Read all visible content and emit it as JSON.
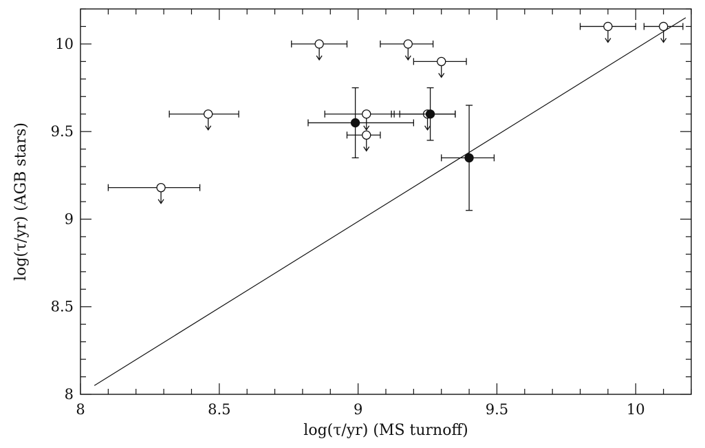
{
  "chart_data": {
    "type": "scatter",
    "xlabel": "log(τ/yr) (MS turnoff)",
    "ylabel": "log(τ/yr) (AGB stars)",
    "xlim": [
      8.0,
      10.2
    ],
    "ylim": [
      8.0,
      10.2
    ],
    "xticks": [
      "8",
      "8.5",
      "9",
      "9.5",
      "10"
    ],
    "yticks": [
      "8",
      "8.5",
      "9",
      "9.5",
      "10"
    ],
    "xtick_values": [
      8.0,
      8.5,
      9.0,
      9.5,
      10.0
    ],
    "ytick_values": [
      8.0,
      8.5,
      9.0,
      9.5,
      10.0
    ],
    "grid": false,
    "identity_line": [
      [
        8.05,
        8.05
      ],
      [
        10.18,
        10.15
      ]
    ],
    "series": [
      {
        "marker": "open-circle",
        "upper_limit": true,
        "points": [
          {
            "x": 8.29,
            "y": 9.18,
            "xerr": [
              8.1,
              8.43
            ]
          },
          {
            "x": 8.46,
            "y": 9.6,
            "xerr": [
              8.32,
              8.57
            ]
          },
          {
            "x": 8.86,
            "y": 10.0,
            "xerr": [
              8.76,
              8.96
            ]
          },
          {
            "x": 9.03,
            "y": 9.6,
            "xerr": [
              8.88,
              9.13
            ]
          },
          {
            "x": 9.03,
            "y": 9.48,
            "xerr": [
              8.96,
              9.08
            ]
          },
          {
            "x": 9.18,
            "y": 10.0,
            "xerr": [
              9.08,
              9.27
            ]
          },
          {
            "x": 9.3,
            "y": 9.9,
            "xerr": [
              9.2,
              9.39
            ]
          },
          {
            "x": 9.25,
            "y": 9.6,
            "xerr": [
              9.12,
              9.35
            ]
          },
          {
            "x": 9.9,
            "y": 10.1,
            "xerr": [
              9.8,
              10.0
            ]
          },
          {
            "x": 10.1,
            "y": 10.1,
            "xerr": [
              10.03,
              10.17
            ]
          }
        ]
      },
      {
        "marker": "filled-circle",
        "upper_limit": false,
        "points": [
          {
            "x": 8.99,
            "y": 9.55,
            "xerr": [
              8.82,
              9.2
            ],
            "yerr": [
              9.35,
              9.75
            ]
          },
          {
            "x": 9.26,
            "y": 9.6,
            "xerr": [
              9.15,
              9.35
            ],
            "yerr": [
              9.45,
              9.75
            ]
          },
          {
            "x": 9.4,
            "y": 9.35,
            "xerr": [
              9.3,
              9.49
            ],
            "yerr": [
              9.05,
              9.65
            ]
          }
        ]
      }
    ]
  }
}
